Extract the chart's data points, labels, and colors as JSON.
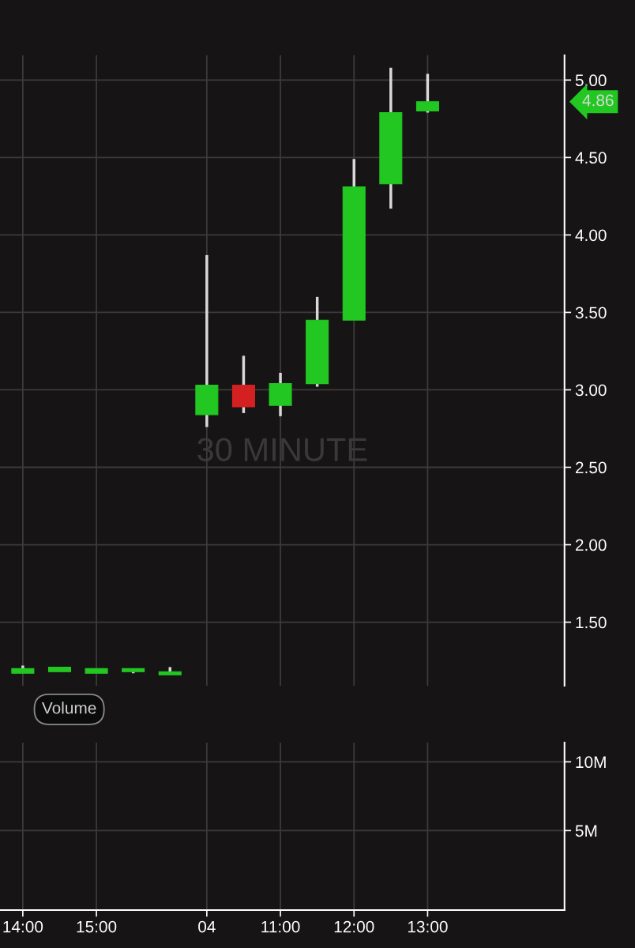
{
  "chart_data": [
    {
      "type": "candlestick",
      "categories": [
        null,
        null,
        null,
        null,
        null,
        null,
        null,
        null,
        null,
        null,
        null,
        null,
        null,
        null,
        null
      ],
      "ohlc": [
        [
          1.17,
          1.22,
          1.17,
          1.2
        ],
        [
          1.18,
          1.21,
          1.18,
          1.21
        ],
        [
          1.17,
          1.2,
          1.17,
          1.2
        ],
        [
          1.18,
          1.2,
          1.17,
          1.2
        ],
        [
          1.16,
          1.21,
          1.16,
          1.18
        ],
        [
          2.84,
          3.87,
          2.76,
          3.03
        ],
        [
          3.03,
          3.22,
          2.85,
          2.89
        ],
        [
          2.9,
          3.11,
          2.83,
          3.04
        ],
        [
          3.04,
          3.6,
          3.02,
          3.45
        ],
        [
          3.45,
          4.49,
          3.45,
          4.31
        ],
        [
          4.33,
          5.08,
          4.17,
          4.79
        ],
        [
          4.8,
          5.04,
          4.79,
          4.86
        ],
        null,
        null,
        null
      ],
      "colors": [
        "#22c722",
        "#22c722",
        "#22c722",
        "#22c722",
        "#22c722",
        "#22c722",
        "#d42020",
        "#22c722",
        "#22c722",
        "#22c722",
        "#22c722",
        "#22c722",
        null,
        null,
        null
      ],
      "ylim": [
        1.09,
        5.16
      ],
      "yticks": [
        {
          "value": 1.5,
          "label": "1.50"
        },
        {
          "value": 2,
          "label": "2.00"
        },
        {
          "value": 2.5,
          "label": "2.50"
        },
        {
          "value": 3,
          "label": "3.00"
        },
        {
          "value": 3.5,
          "label": "3.50"
        },
        {
          "value": 4,
          "label": "4.00"
        },
        {
          "value": 4.5,
          "label": "4.50"
        },
        {
          "value": 5,
          "label": "5.00"
        }
      ],
      "grid": true,
      "annotations": [
        "4.86",
        "30 MINUTE"
      ]
    },
    {
      "type": "bar",
      "title": "Volume",
      "categories": [
        "14:00",
        null,
        "15:00",
        null,
        null,
        "04",
        null,
        "11:00",
        null,
        "12:00",
        null,
        "13:00",
        null,
        null,
        null
      ],
      "values": [
        null,
        null,
        null,
        null,
        null,
        null,
        null,
        null,
        null,
        null,
        null,
        null,
        null,
        null,
        null
      ],
      "ylim": [
        -780000,
        11400000
      ],
      "yticks": [
        {
          "value": 5000000,
          "label": "5M"
        },
        {
          "value": 10000000,
          "label": "10M"
        }
      ],
      "grid": true
    }
  ]
}
